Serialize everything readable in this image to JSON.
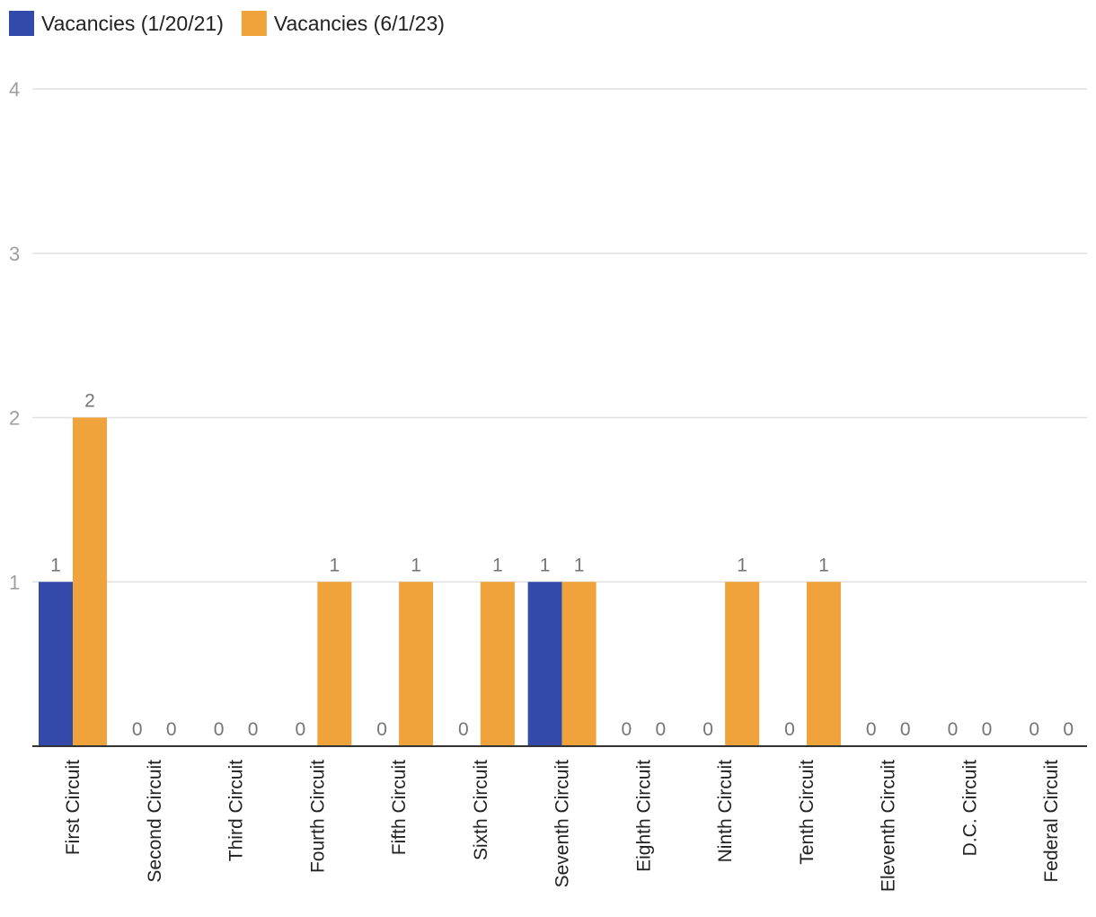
{
  "chart_data": {
    "type": "bar",
    "categories": [
      "First Circuit",
      "Second Circuit",
      "Third Circuit",
      "Fourth Circuit",
      "Fifth Circuit",
      "Sixth Circuit",
      "Seventh Circuit",
      "Eighth Circuit",
      "Ninth Circuit",
      "Tenth Circuit",
      "Eleventh Circuit",
      "D.C. Circuit",
      "Federal Circuit"
    ],
    "series": [
      {
        "name": "Vacancies (1/20/21)",
        "color": "#334aab",
        "values": [
          1,
          0,
          0,
          0,
          0,
          0,
          1,
          0,
          0,
          0,
          0,
          0,
          0
        ]
      },
      {
        "name": "Vacancies (6/1/23)",
        "color": "#f0a33a",
        "values": [
          2,
          0,
          0,
          1,
          1,
          1,
          1,
          0,
          1,
          1,
          0,
          0,
          0
        ]
      }
    ],
    "y_ticks": [
      "1",
      "2",
      "3",
      "4"
    ],
    "ylim": [
      0,
      4
    ],
    "grid": true,
    "legend": "top-left",
    "data_labels": true,
    "title": "",
    "xlabel": "",
    "ylabel": ""
  }
}
